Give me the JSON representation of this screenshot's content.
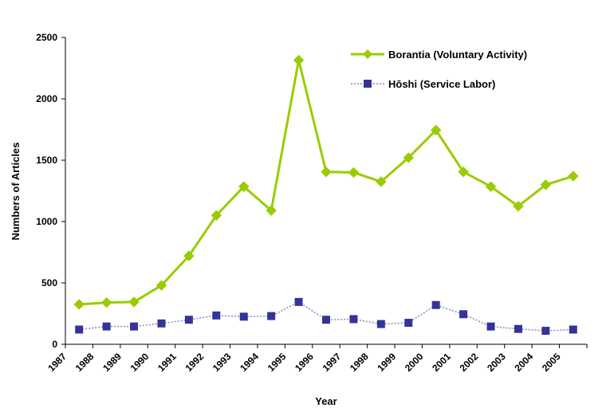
{
  "chart_data": {
    "type": "line",
    "categories": [
      "1987",
      "1988",
      "1989",
      "1990",
      "1991",
      "1992",
      "1993",
      "1994",
      "1995",
      "1996",
      "1997",
      "1998",
      "1999",
      "2000",
      "2001",
      "2002",
      "2003",
      "2004",
      "2005"
    ],
    "series": [
      {
        "name": "Borantia (Voluntary Activity)",
        "color": "#99cc00",
        "marker": "diamond",
        "values": [
          325,
          340,
          345,
          480,
          720,
          1050,
          1285,
          1090,
          2315,
          1405,
          1400,
          1325,
          1520,
          1745,
          1405,
          1285,
          1125,
          1300,
          1370
        ]
      },
      {
        "name": "Hōshi (Service Labor)",
        "color": "#333399",
        "marker": "square",
        "values": [
          120,
          145,
          145,
          170,
          200,
          235,
          225,
          230,
          345,
          200,
          205,
          165,
          175,
          320,
          245,
          145,
          125,
          110,
          120
        ]
      }
    ],
    "xlabel": "Year",
    "ylabel": "Numbers of Articles",
    "ylim": [
      0,
      2500
    ],
    "yticks": [
      "0",
      "500",
      "1000",
      "1500",
      "2000",
      "2500"
    ],
    "grid": false,
    "legend": "top-right"
  }
}
